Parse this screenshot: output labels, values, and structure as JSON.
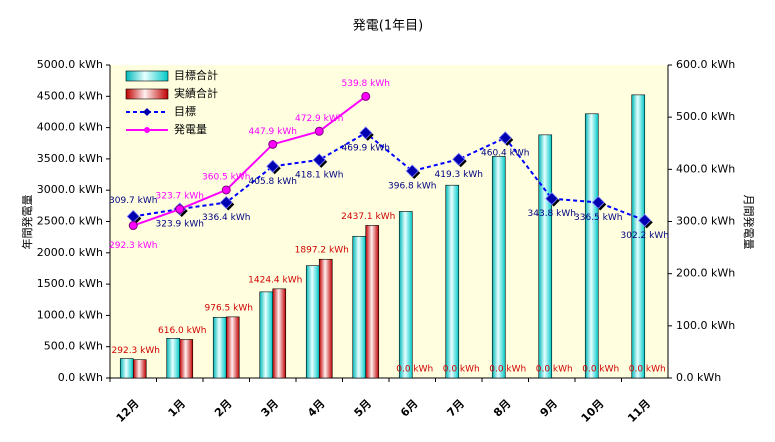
{
  "chart_data": {
    "type": "bar-line",
    "title": "発電(1年目)",
    "ylabel": "年間発電量",
    "y2label": "月間発電量",
    "categories": [
      "12月",
      "1月",
      "2月",
      "3月",
      "4月",
      "5月",
      "6月",
      "7月",
      "8月",
      "9月",
      "10月",
      "11月"
    ],
    "ylim": [
      0,
      5000
    ],
    "yticks": [
      {
        "value": 0,
        "label": "0.0 kWh"
      },
      {
        "value": 500,
        "label": "500.0 kWh"
      },
      {
        "value": 1000,
        "label": "1000.0 kWh"
      },
      {
        "value": 1500,
        "label": "1500.0 kWh"
      },
      {
        "value": 2000,
        "label": "2000.0 kWh"
      },
      {
        "value": 2500,
        "label": "2500.0 kWh"
      },
      {
        "value": 3000,
        "label": "3000.0 kWh"
      },
      {
        "value": 3500,
        "label": "3500.0 kWh"
      },
      {
        "value": 4000,
        "label": "4000.0 kWh"
      },
      {
        "value": 4500,
        "label": "4500.0 kWh"
      },
      {
        "value": 5000,
        "label": "5000.0 kWh"
      }
    ],
    "y2lim": [
      0,
      600
    ],
    "y2ticks": [
      {
        "value": 0,
        "label": "0.0 kWh"
      },
      {
        "value": 100,
        "label": "100.0 kWh"
      },
      {
        "value": 200,
        "label": "200.0 kWh"
      },
      {
        "value": 300,
        "label": "300.0 kWh"
      },
      {
        "value": 400,
        "label": "400.0 kWh"
      },
      {
        "value": 500,
        "label": "500.0 kWh"
      },
      {
        "value": 600,
        "label": "600.0 kWh"
      }
    ],
    "legend": "upper left",
    "series": [
      {
        "name": "目標合計",
        "kind": "bar",
        "axis": "y",
        "color": "#00e0e0",
        "values": [
          309.7,
          633.6,
          970.0,
          1375.8,
          1793.9,
          2263.8,
          2660.6,
          3079.9,
          3540.3,
          3884.1,
          4220.6,
          4522.8
        ]
      },
      {
        "name": "実績合計",
        "kind": "bar",
        "axis": "y",
        "color": "#d00000",
        "values": [
          292.3,
          616.0,
          976.5,
          1424.4,
          1897.2,
          2437.1,
          0,
          0,
          0,
          0,
          0,
          0
        ],
        "value_labels": [
          "292.3 kWh",
          "616.0 kWh",
          "976.5 kWh",
          "1424.4 kWh",
          "1897.2 kWh",
          "2437.1 kWh",
          "0.0 kWh",
          "0.0 kWh",
          "0.0 kWh",
          "0.0 kWh",
          "0.0 kWh",
          "0.0 kWh"
        ]
      },
      {
        "name": "目標",
        "kind": "line",
        "axis": "y2",
        "color": "#0000ff",
        "values": [
          309.7,
          323.9,
          336.4,
          405.8,
          418.1,
          469.9,
          396.8,
          419.3,
          460.4,
          343.8,
          336.5,
          302.2
        ],
        "value_labels": [
          "309.7 kWh",
          "323.9 kWh",
          "336.4 kWh",
          "405.8 kWh",
          "418.1 kWh",
          "469.9 kWh",
          "396.8 kWh",
          "419.3 kWh",
          "460.4 kWh",
          "343.8 kWh",
          "336.5 kWh",
          "302.2 kWh"
        ]
      },
      {
        "name": "発電量",
        "kind": "line",
        "axis": "y2",
        "color": "#ff00ff",
        "values": [
          292.3,
          323.7,
          360.5,
          447.9,
          472.9,
          539.8,
          null,
          null,
          null,
          null,
          null,
          null
        ],
        "value_labels": [
          "292.3 kWh",
          "323.7 kWh",
          "360.5 kWh",
          "447.9 kWh",
          "472.9 kWh",
          "539.8 kWh",
          null,
          null,
          null,
          null,
          null,
          null
        ]
      }
    ]
  }
}
